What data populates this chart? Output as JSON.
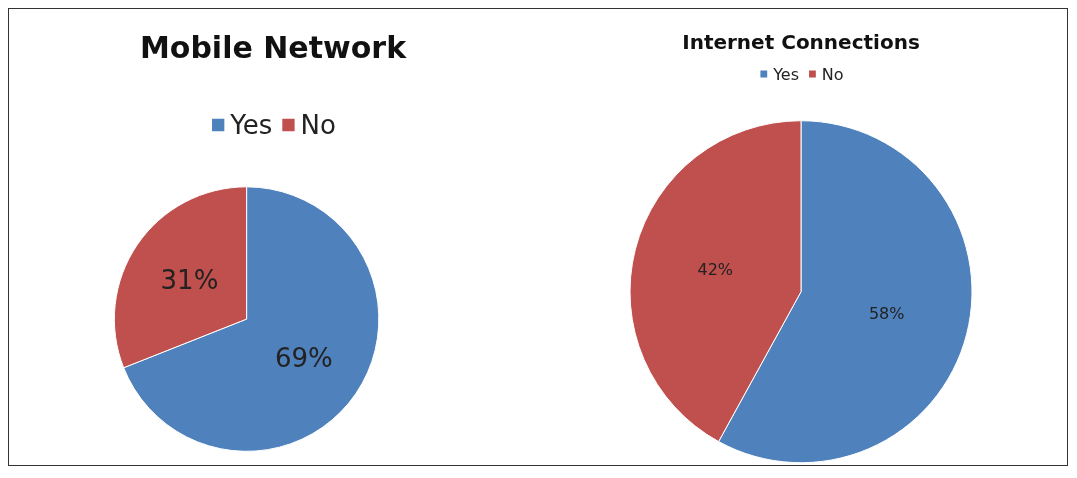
{
  "chart_data": [
    {
      "type": "pie",
      "title": "Mobile Network",
      "categories": [
        "Yes",
        "No"
      ],
      "values": [
        69,
        31
      ],
      "colors": [
        "#4f81bd",
        "#c0504d"
      ],
      "value_labels": [
        "69%",
        "31%"
      ],
      "legend": "top"
    },
    {
      "type": "pie",
      "title": "Internet Connections",
      "categories": [
        "Yes",
        "No"
      ],
      "values": [
        58,
        42
      ],
      "colors": [
        "#4f81bd",
        "#c0504d"
      ],
      "value_labels": [
        "58%",
        "42%"
      ],
      "legend": "top"
    }
  ]
}
